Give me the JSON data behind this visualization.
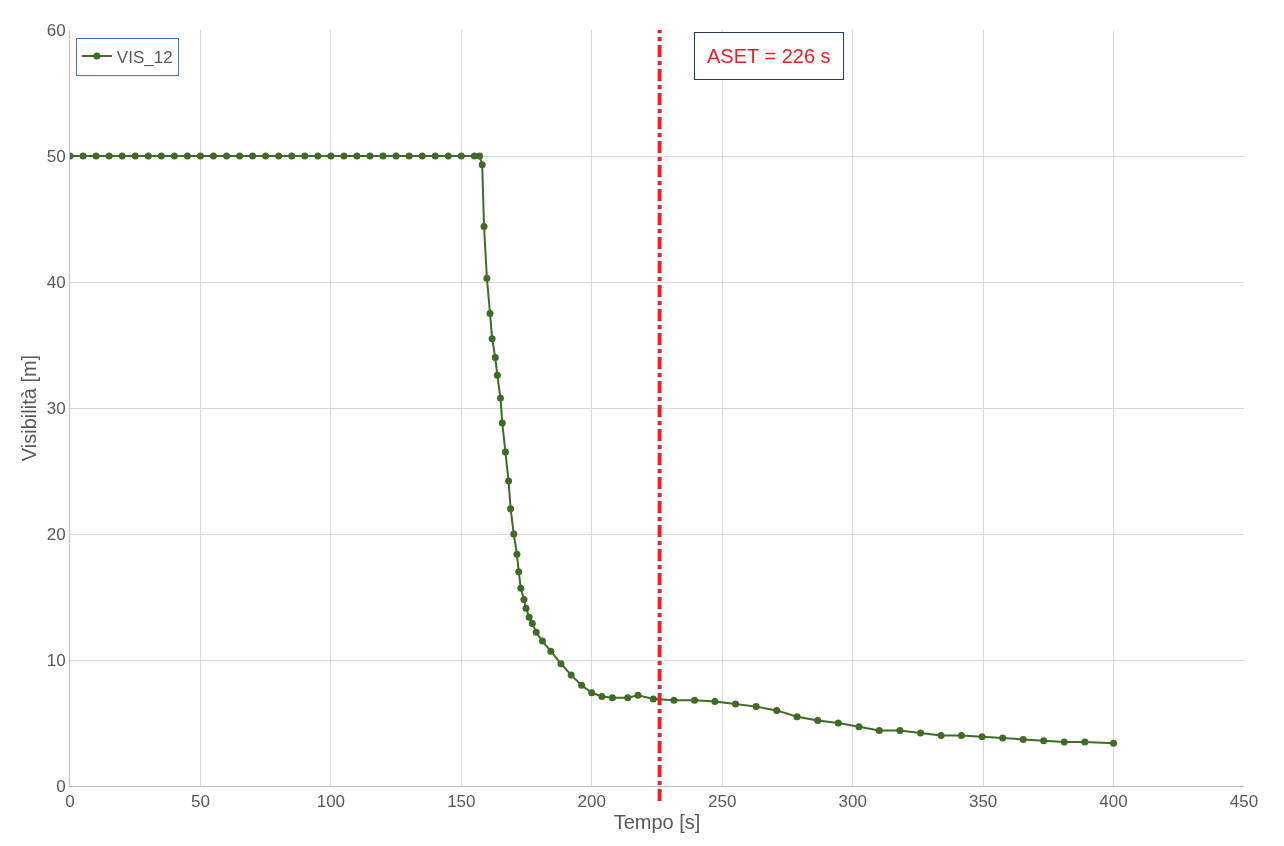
{
  "chart_data": {
    "type": "line",
    "xlabel": "Tempo [s]",
    "ylabel": "Visibilità [m]",
    "xlim": [
      0,
      450
    ],
    "xticks": [
      0,
      50,
      100,
      150,
      200,
      250,
      300,
      350,
      400,
      450
    ],
    "ylim": [
      0,
      60
    ],
    "yticks": [
      0,
      10,
      20,
      30,
      40,
      50,
      60
    ],
    "grid": true,
    "legend": "top left",
    "marker": "circle",
    "line_style": "solid",
    "series": [
      {
        "name": "VIS_12",
        "color": "#3f6b27",
        "x": [
          0,
          5,
          10,
          15,
          20,
          25,
          30,
          35,
          40,
          45,
          50,
          55,
          60,
          65,
          70,
          75,
          80,
          85,
          90,
          95,
          100,
          105,
          110,
          115,
          120,
          125,
          130,
          135,
          140,
          145,
          150,
          155,
          157,
          158,
          158.7,
          159.8,
          161,
          161.8,
          163,
          163.8,
          165,
          165.7,
          166.9,
          168.1,
          168.9,
          170.1,
          171.3,
          172,
          172.8,
          174,
          174.8,
          176,
          177.2,
          178.7,
          181.1,
          184.3,
          188.2,
          192.1,
          196.1,
          200,
          203.9,
          207.9,
          213.8,
          217.7,
          223.6,
          231.5,
          239.4,
          247.2,
          255.1,
          263,
          270.9,
          278.7,
          286.6,
          294.5,
          302.4,
          310.2,
          318.1,
          326,
          333.9,
          341.7,
          349.6,
          357.5,
          365.4,
          373.2,
          381.1,
          389,
          400
        ],
        "values": [
          50,
          50,
          50,
          50,
          50,
          50,
          50,
          50,
          50,
          50,
          50,
          50,
          50,
          50,
          50,
          50,
          50,
          50,
          50,
          50,
          50,
          50,
          50,
          50,
          50,
          50,
          50,
          50,
          50,
          50,
          50,
          50,
          50,
          49.3,
          44.4,
          40.3,
          37.5,
          35.5,
          34.0,
          32.6,
          30.8,
          28.8,
          26.5,
          24.2,
          22.0,
          20.0,
          18.4,
          17.0,
          15.7,
          14.8,
          14.1,
          13.4,
          12.9,
          12.2,
          11.5,
          10.7,
          9.7,
          8.8,
          8.0,
          7.4,
          7.1,
          7.0,
          7.0,
          7.2,
          6.9,
          6.8,
          6.8,
          6.7,
          6.5,
          6.3,
          6.0,
          5.5,
          5.2,
          5.0,
          4.7,
          4.4,
          4.4,
          4.2,
          4.0,
          4.0,
          3.9,
          3.8,
          3.7,
          3.6,
          3.5,
          3.5,
          3.4
        ]
      }
    ],
    "ref_lines": [
      {
        "axis": "x",
        "value": 226,
        "label": "ASET = 226 s",
        "color": "#e8202a",
        "line_style": "dashdot"
      }
    ]
  }
}
